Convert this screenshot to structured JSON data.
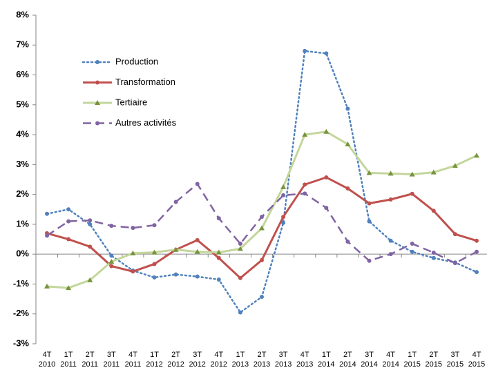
{
  "chart_data": {
    "type": "line",
    "categories": [
      [
        "4T",
        "2010"
      ],
      [
        "1T",
        "2011"
      ],
      [
        "2T",
        "2011"
      ],
      [
        "3T",
        "2011"
      ],
      [
        "4T",
        "2011"
      ],
      [
        "1T",
        "2012"
      ],
      [
        "2T",
        "2012"
      ],
      [
        "3T",
        "2012"
      ],
      [
        "4T",
        "2012"
      ],
      [
        "1T",
        "2013"
      ],
      [
        "2T",
        "2013"
      ],
      [
        "3T",
        "2013"
      ],
      [
        "4T",
        "2013"
      ],
      [
        "1T",
        "2014"
      ],
      [
        "2T",
        "2014"
      ],
      [
        "3T",
        "2014"
      ],
      [
        "4T",
        "2014"
      ],
      [
        "1T",
        "2015"
      ],
      [
        "2T",
        "2015"
      ],
      [
        "3T",
        "2015"
      ],
      [
        "4T",
        "2015"
      ]
    ],
    "series": [
      {
        "name": "Production",
        "color": "#4f81bd",
        "dash": "dot",
        "marker": "circle",
        "values": [
          1.35,
          1.5,
          1.0,
          -0.05,
          -0.55,
          -0.78,
          -0.68,
          -0.75,
          -0.85,
          -1.95,
          -1.43,
          1.05,
          6.8,
          6.72,
          4.87,
          1.1,
          0.45,
          0.08,
          -0.13,
          -0.28,
          -0.6
        ]
      },
      {
        "name": "Transformation",
        "color": "#c0504d",
        "dash": "solid",
        "marker": "circle",
        "values": [
          0.7,
          0.5,
          0.25,
          -0.4,
          -0.58,
          -0.33,
          0.15,
          0.47,
          -0.13,
          -0.8,
          -0.2,
          1.25,
          2.33,
          2.57,
          2.2,
          1.7,
          1.83,
          2.02,
          1.45,
          0.67,
          0.45
        ]
      },
      {
        "name": "Tertiaire",
        "color": "#c3d69b",
        "marker_color": "#77933c",
        "dash": "solid",
        "marker": "triangle",
        "values": [
          -1.08,
          -1.13,
          -0.87,
          -0.25,
          0.03,
          0.06,
          0.15,
          0.08,
          0.06,
          0.18,
          0.87,
          2.25,
          4.0,
          4.1,
          3.68,
          2.72,
          2.7,
          2.67,
          2.74,
          2.96,
          3.3
        ]
      },
      {
        "name": "Autres activités",
        "color": "#8064a2",
        "dash": "dash",
        "marker": "circle",
        "values": [
          0.62,
          1.1,
          1.13,
          0.95,
          0.88,
          0.97,
          1.75,
          2.35,
          1.2,
          0.35,
          1.25,
          1.97,
          2.03,
          1.55,
          0.42,
          -0.22,
          0.0,
          0.35,
          0.05,
          -0.3,
          0.08
        ]
      }
    ],
    "ylim": [
      -3,
      8
    ],
    "yticks": [
      {
        "value": -3,
        "label": "-3%"
      },
      {
        "value": -2,
        "label": "-2%"
      },
      {
        "value": -1,
        "label": "-1%"
      },
      {
        "value": 0,
        "label": "0%"
      },
      {
        "value": 1,
        "label": "1%"
      },
      {
        "value": 2,
        "label": "2%"
      },
      {
        "value": 3,
        "label": "3%"
      },
      {
        "value": 4,
        "label": "4%"
      },
      {
        "value": 5,
        "label": "5%"
      },
      {
        "value": 6,
        "label": "6%"
      },
      {
        "value": 7,
        "label": "7%"
      },
      {
        "value": 8,
        "label": "8%"
      }
    ],
    "grid": false,
    "legend": "upper-left"
  }
}
